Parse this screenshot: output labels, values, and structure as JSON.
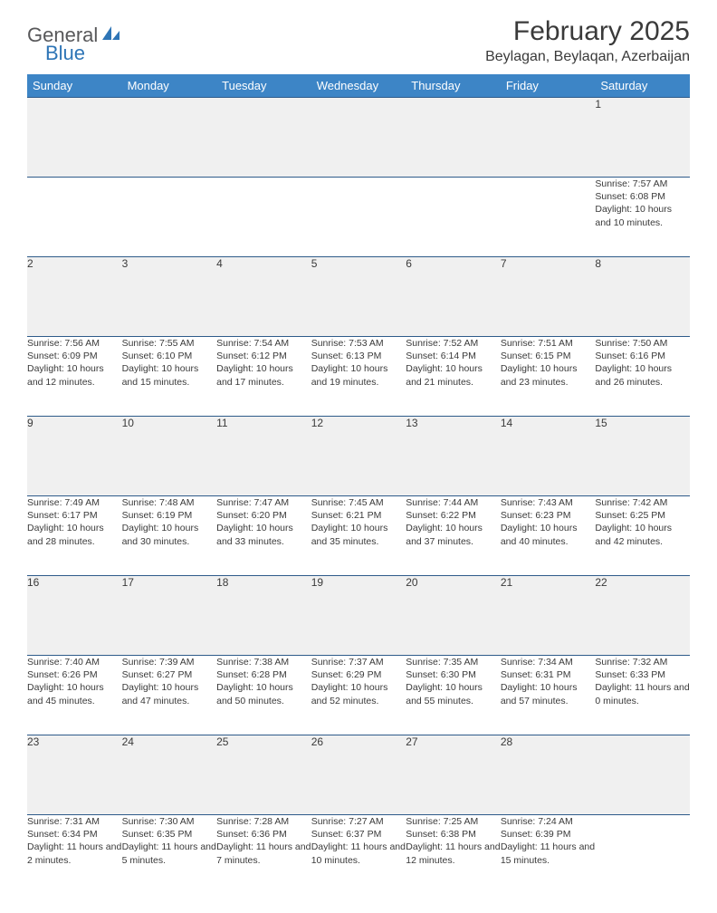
{
  "brand": {
    "part1": "General",
    "part2": "Blue"
  },
  "title": "February 2025",
  "location": "Beylagan, Beylaqan, Azerbaijan",
  "colors": {
    "header_bg": "#3d85c6",
    "header_text": "#ffffff",
    "daynum_bg": "#f0f0f0",
    "border": "#2e5b8a",
    "text": "#3a3a3a",
    "brand_gray": "#58585a",
    "brand_blue": "#2e75b6",
    "page_bg": "#ffffff"
  },
  "fonts": {
    "title_size": 30,
    "location_size": 16,
    "header_size": 13,
    "daynum_size": 12,
    "body_size": 10.5
  },
  "weekdays": [
    "Sunday",
    "Monday",
    "Tuesday",
    "Wednesday",
    "Thursday",
    "Friday",
    "Saturday"
  ],
  "weeks": [
    [
      null,
      null,
      null,
      null,
      null,
      null,
      {
        "n": "1",
        "sr": "Sunrise: 7:57 AM",
        "ss": "Sunset: 6:08 PM",
        "dl": "Daylight: 10 hours and 10 minutes."
      }
    ],
    [
      {
        "n": "2",
        "sr": "Sunrise: 7:56 AM",
        "ss": "Sunset: 6:09 PM",
        "dl": "Daylight: 10 hours and 12 minutes."
      },
      {
        "n": "3",
        "sr": "Sunrise: 7:55 AM",
        "ss": "Sunset: 6:10 PM",
        "dl": "Daylight: 10 hours and 15 minutes."
      },
      {
        "n": "4",
        "sr": "Sunrise: 7:54 AM",
        "ss": "Sunset: 6:12 PM",
        "dl": "Daylight: 10 hours and 17 minutes."
      },
      {
        "n": "5",
        "sr": "Sunrise: 7:53 AM",
        "ss": "Sunset: 6:13 PM",
        "dl": "Daylight: 10 hours and 19 minutes."
      },
      {
        "n": "6",
        "sr": "Sunrise: 7:52 AM",
        "ss": "Sunset: 6:14 PM",
        "dl": "Daylight: 10 hours and 21 minutes."
      },
      {
        "n": "7",
        "sr": "Sunrise: 7:51 AM",
        "ss": "Sunset: 6:15 PM",
        "dl": "Daylight: 10 hours and 23 minutes."
      },
      {
        "n": "8",
        "sr": "Sunrise: 7:50 AM",
        "ss": "Sunset: 6:16 PM",
        "dl": "Daylight: 10 hours and 26 minutes."
      }
    ],
    [
      {
        "n": "9",
        "sr": "Sunrise: 7:49 AM",
        "ss": "Sunset: 6:17 PM",
        "dl": "Daylight: 10 hours and 28 minutes."
      },
      {
        "n": "10",
        "sr": "Sunrise: 7:48 AM",
        "ss": "Sunset: 6:19 PM",
        "dl": "Daylight: 10 hours and 30 minutes."
      },
      {
        "n": "11",
        "sr": "Sunrise: 7:47 AM",
        "ss": "Sunset: 6:20 PM",
        "dl": "Daylight: 10 hours and 33 minutes."
      },
      {
        "n": "12",
        "sr": "Sunrise: 7:45 AM",
        "ss": "Sunset: 6:21 PM",
        "dl": "Daylight: 10 hours and 35 minutes."
      },
      {
        "n": "13",
        "sr": "Sunrise: 7:44 AM",
        "ss": "Sunset: 6:22 PM",
        "dl": "Daylight: 10 hours and 37 minutes."
      },
      {
        "n": "14",
        "sr": "Sunrise: 7:43 AM",
        "ss": "Sunset: 6:23 PM",
        "dl": "Daylight: 10 hours and 40 minutes."
      },
      {
        "n": "15",
        "sr": "Sunrise: 7:42 AM",
        "ss": "Sunset: 6:25 PM",
        "dl": "Daylight: 10 hours and 42 minutes."
      }
    ],
    [
      {
        "n": "16",
        "sr": "Sunrise: 7:40 AM",
        "ss": "Sunset: 6:26 PM",
        "dl": "Daylight: 10 hours and 45 minutes."
      },
      {
        "n": "17",
        "sr": "Sunrise: 7:39 AM",
        "ss": "Sunset: 6:27 PM",
        "dl": "Daylight: 10 hours and 47 minutes."
      },
      {
        "n": "18",
        "sr": "Sunrise: 7:38 AM",
        "ss": "Sunset: 6:28 PM",
        "dl": "Daylight: 10 hours and 50 minutes."
      },
      {
        "n": "19",
        "sr": "Sunrise: 7:37 AM",
        "ss": "Sunset: 6:29 PM",
        "dl": "Daylight: 10 hours and 52 minutes."
      },
      {
        "n": "20",
        "sr": "Sunrise: 7:35 AM",
        "ss": "Sunset: 6:30 PM",
        "dl": "Daylight: 10 hours and 55 minutes."
      },
      {
        "n": "21",
        "sr": "Sunrise: 7:34 AM",
        "ss": "Sunset: 6:31 PM",
        "dl": "Daylight: 10 hours and 57 minutes."
      },
      {
        "n": "22",
        "sr": "Sunrise: 7:32 AM",
        "ss": "Sunset: 6:33 PM",
        "dl": "Daylight: 11 hours and 0 minutes."
      }
    ],
    [
      {
        "n": "23",
        "sr": "Sunrise: 7:31 AM",
        "ss": "Sunset: 6:34 PM",
        "dl": "Daylight: 11 hours and 2 minutes."
      },
      {
        "n": "24",
        "sr": "Sunrise: 7:30 AM",
        "ss": "Sunset: 6:35 PM",
        "dl": "Daylight: 11 hours and 5 minutes."
      },
      {
        "n": "25",
        "sr": "Sunrise: 7:28 AM",
        "ss": "Sunset: 6:36 PM",
        "dl": "Daylight: 11 hours and 7 minutes."
      },
      {
        "n": "26",
        "sr": "Sunrise: 7:27 AM",
        "ss": "Sunset: 6:37 PM",
        "dl": "Daylight: 11 hours and 10 minutes."
      },
      {
        "n": "27",
        "sr": "Sunrise: 7:25 AM",
        "ss": "Sunset: 6:38 PM",
        "dl": "Daylight: 11 hours and 12 minutes."
      },
      {
        "n": "28",
        "sr": "Sunrise: 7:24 AM",
        "ss": "Sunset: 6:39 PM",
        "dl": "Daylight: 11 hours and 15 minutes."
      },
      null
    ]
  ]
}
